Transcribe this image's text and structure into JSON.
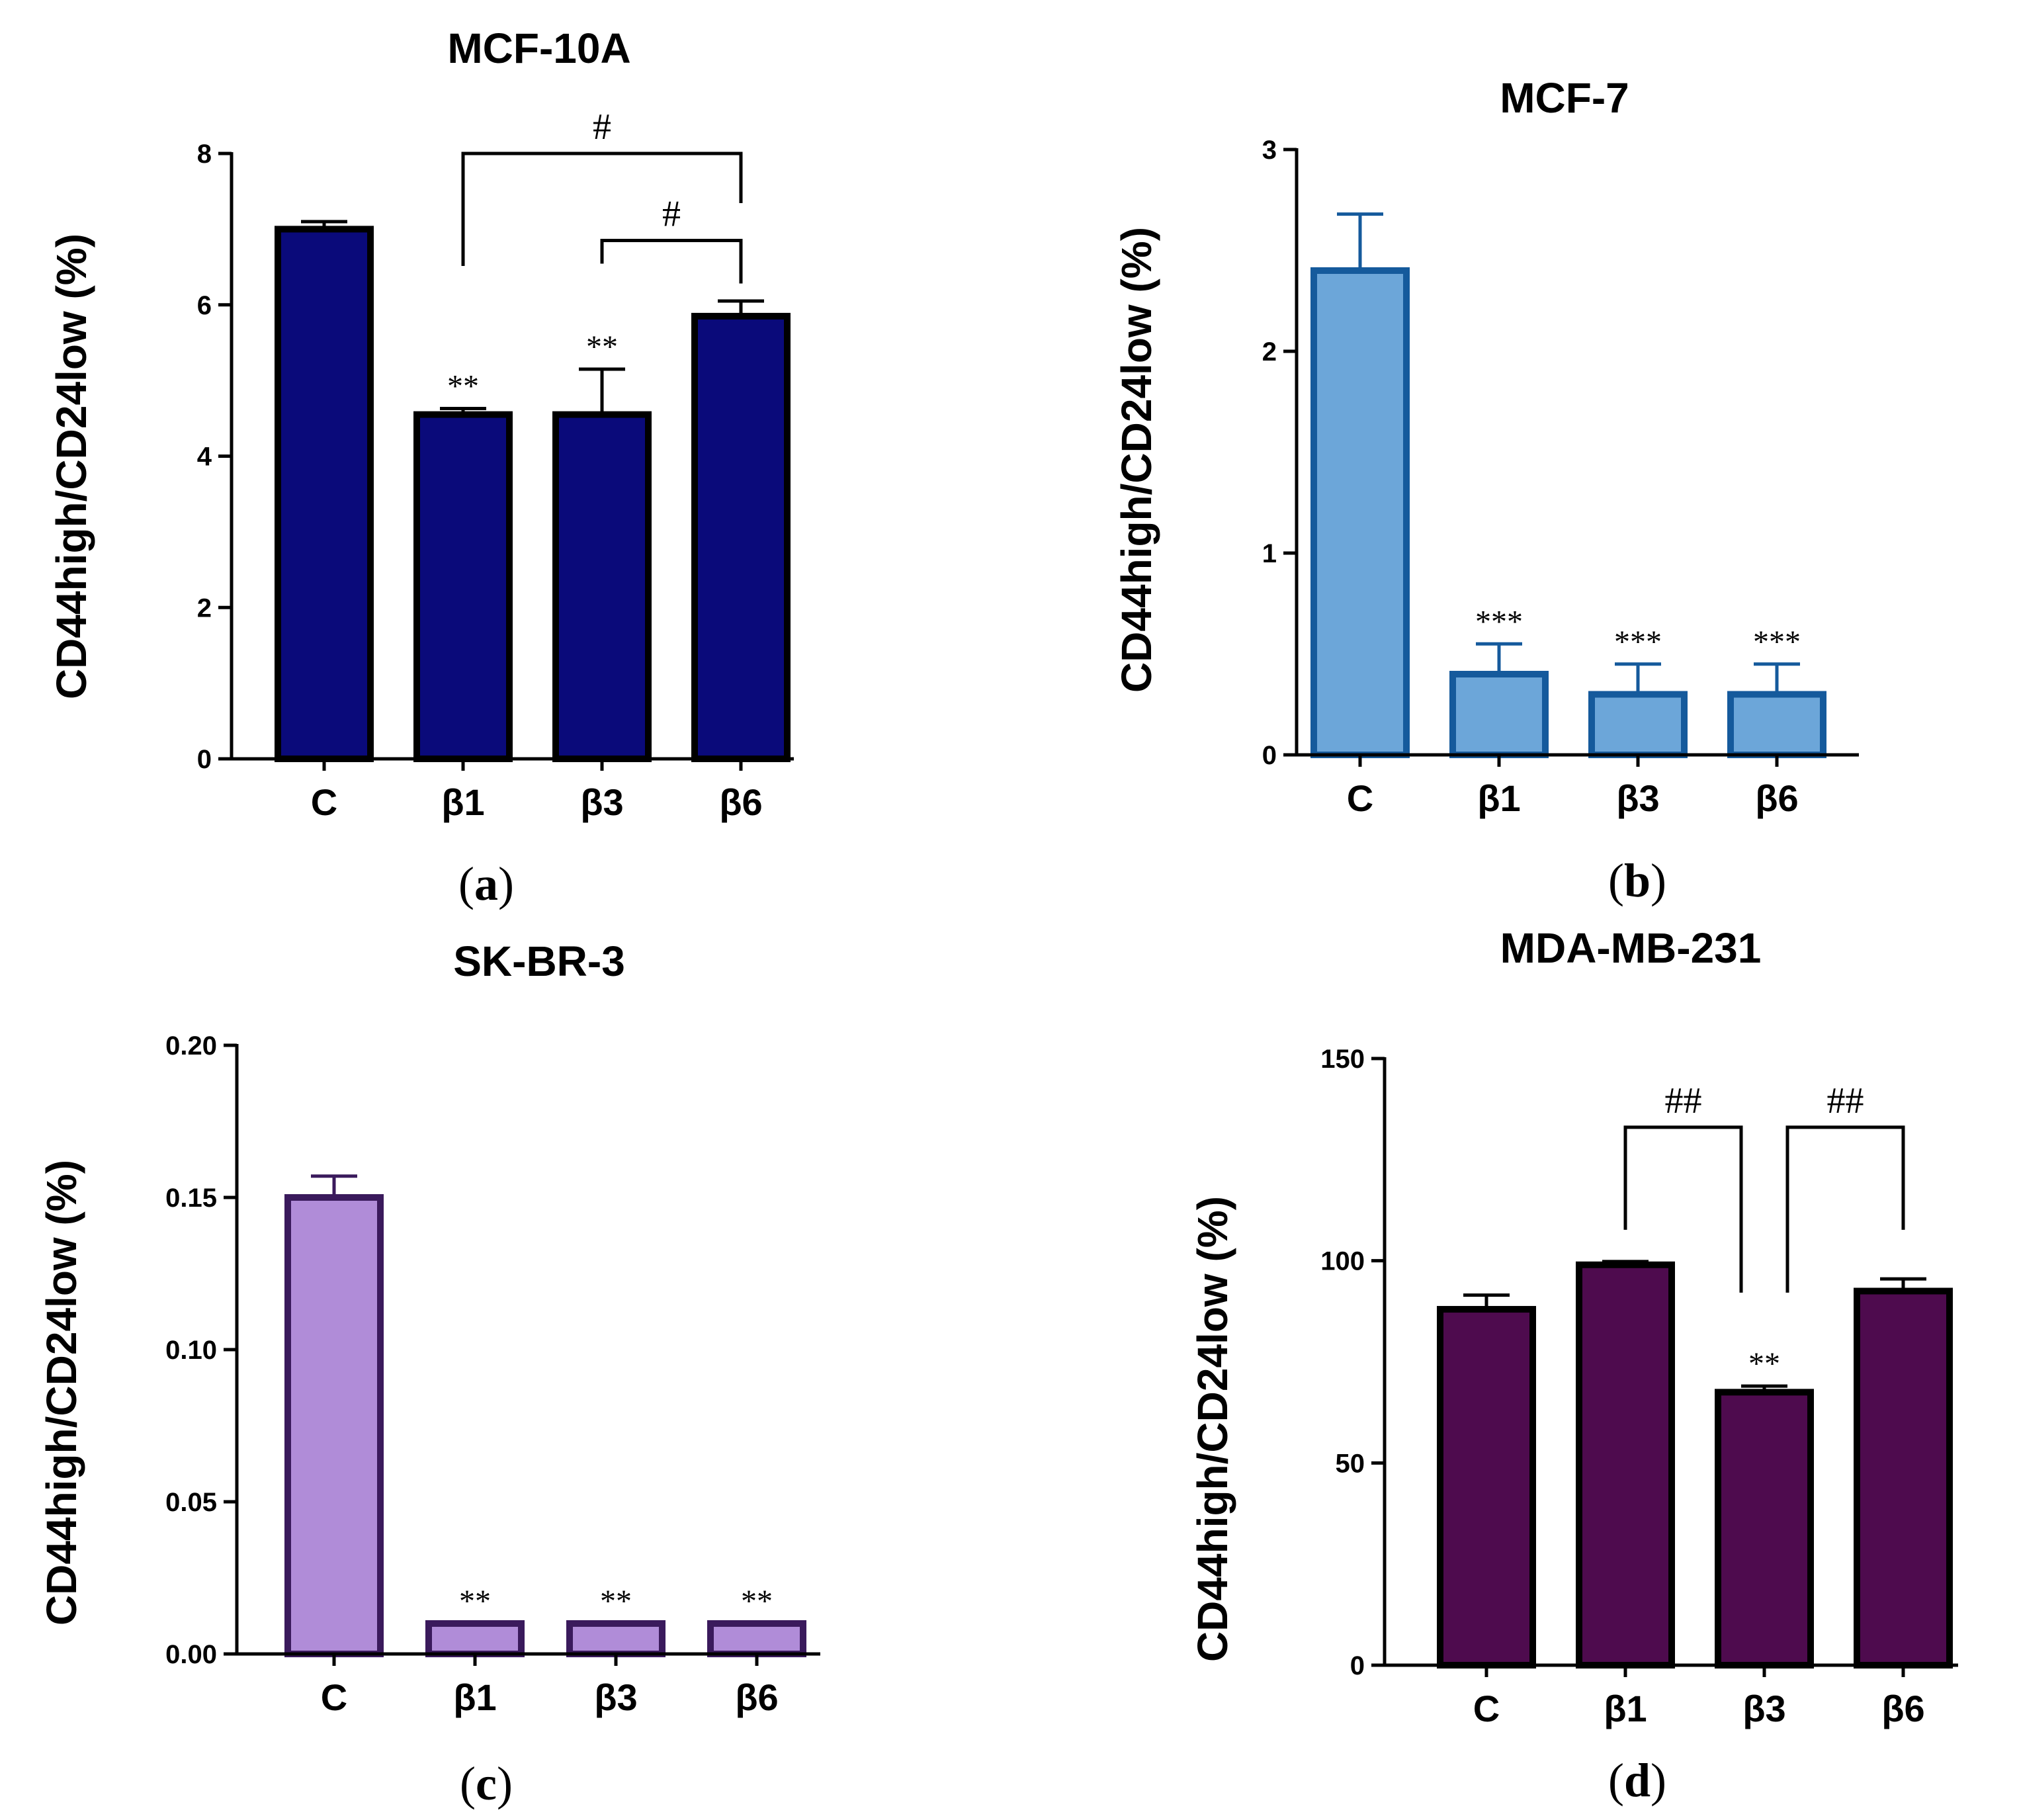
{
  "chart_data": [
    {
      "type": "bar",
      "panel": "a",
      "title": "MCF-10A",
      "ylabel": "CD44high/CD24low (%)",
      "xlabel": "",
      "categories": [
        "C",
        "β1",
        "β3",
        "β6"
      ],
      "values": [
        7.0,
        4.55,
        4.55,
        5.85
      ],
      "errors": [
        0.1,
        0.08,
        0.6,
        0.2
      ],
      "ylim": [
        0,
        8
      ],
      "yticks": [
        0,
        2,
        4,
        6,
        8
      ],
      "tick_labels": [
        "0",
        "2",
        "4",
        "6",
        "8"
      ],
      "significance": [
        "",
        "**",
        "**",
        ""
      ],
      "brackets": [
        {
          "from": 1,
          "to": 3,
          "label": "#",
          "y": 8.0
        },
        {
          "from": 2,
          "to": 3,
          "label": "#",
          "y": 6.85
        }
      ],
      "colors": {
        "fill": "#0a0a7a",
        "stroke": "#000000",
        "error": "#000000"
      }
    },
    {
      "type": "bar",
      "panel": "b",
      "title": "MCF-7",
      "ylabel": "CD44high/CD24low (%)",
      "xlabel": "",
      "categories": [
        "C",
        "β1",
        "β3",
        "β6"
      ],
      "values": [
        2.4,
        0.4,
        0.3,
        0.3
      ],
      "errors": [
        0.28,
        0.15,
        0.15,
        0.15
      ],
      "ylim": [
        0,
        3
      ],
      "yticks": [
        0,
        1,
        2,
        3
      ],
      "tick_labels": [
        "0",
        "1",
        "2",
        "3"
      ],
      "significance": [
        "",
        "***",
        "***",
        "***"
      ],
      "brackets": [],
      "colors": {
        "fill": "#6ca6d9",
        "stroke": "#155a9c",
        "error": "#155a9c"
      }
    },
    {
      "type": "bar",
      "panel": "c",
      "title": "SK-BR-3",
      "ylabel": "CD44high/CD24low (%)",
      "xlabel": "",
      "categories": [
        "C",
        "β1",
        "β3",
        "β6"
      ],
      "values": [
        0.15,
        0.01,
        0.01,
        0.01
      ],
      "errors": [
        0.007,
        0.0,
        0.0,
        0.0
      ],
      "ylim": [
        0,
        0.2
      ],
      "yticks": [
        0,
        0.05,
        0.1,
        0.15,
        0.2
      ],
      "tick_labels": [
        "0.00",
        "0.05",
        "0.10",
        "0.15",
        "0.20"
      ],
      "significance": [
        "",
        "**",
        "**",
        "**"
      ],
      "brackets": [],
      "colors": {
        "fill": "#b08cd8",
        "stroke": "#3a1a5c",
        "error": "#3a1a5c"
      }
    },
    {
      "type": "bar",
      "panel": "d",
      "title": "MDA-MB-231",
      "ylabel": "CD44high/CD24low (%)",
      "xlabel": "",
      "categories": [
        "C",
        "β1",
        "β3",
        "β6"
      ],
      "values": [
        88,
        99,
        67.5,
        92.5
      ],
      "errors": [
        3.5,
        0.8,
        1.5,
        3
      ],
      "ylim": [
        0,
        150
      ],
      "yticks": [
        0,
        50,
        100,
        150
      ],
      "tick_labels": [
        "0",
        "50",
        "100",
        "150"
      ],
      "significance": [
        "",
        "",
        "**",
        ""
      ],
      "brackets": [
        {
          "from": 1,
          "to": 2,
          "label": "##",
          "y": 133
        },
        {
          "from": 2,
          "to": 3,
          "label": "##",
          "y": 133
        }
      ],
      "colors": {
        "fill": "#4e0b4e",
        "stroke": "#000000",
        "error": "#000000"
      }
    }
  ],
  "panel_labels": {
    "a": {
      "open": "(",
      "letter": "a",
      "close": ")"
    },
    "b": {
      "open": "(",
      "letter": "b",
      "close": ")"
    },
    "c": {
      "open": "(",
      "letter": "c",
      "close": ")"
    },
    "d": {
      "open": "(",
      "letter": "d",
      "close": ")"
    }
  }
}
